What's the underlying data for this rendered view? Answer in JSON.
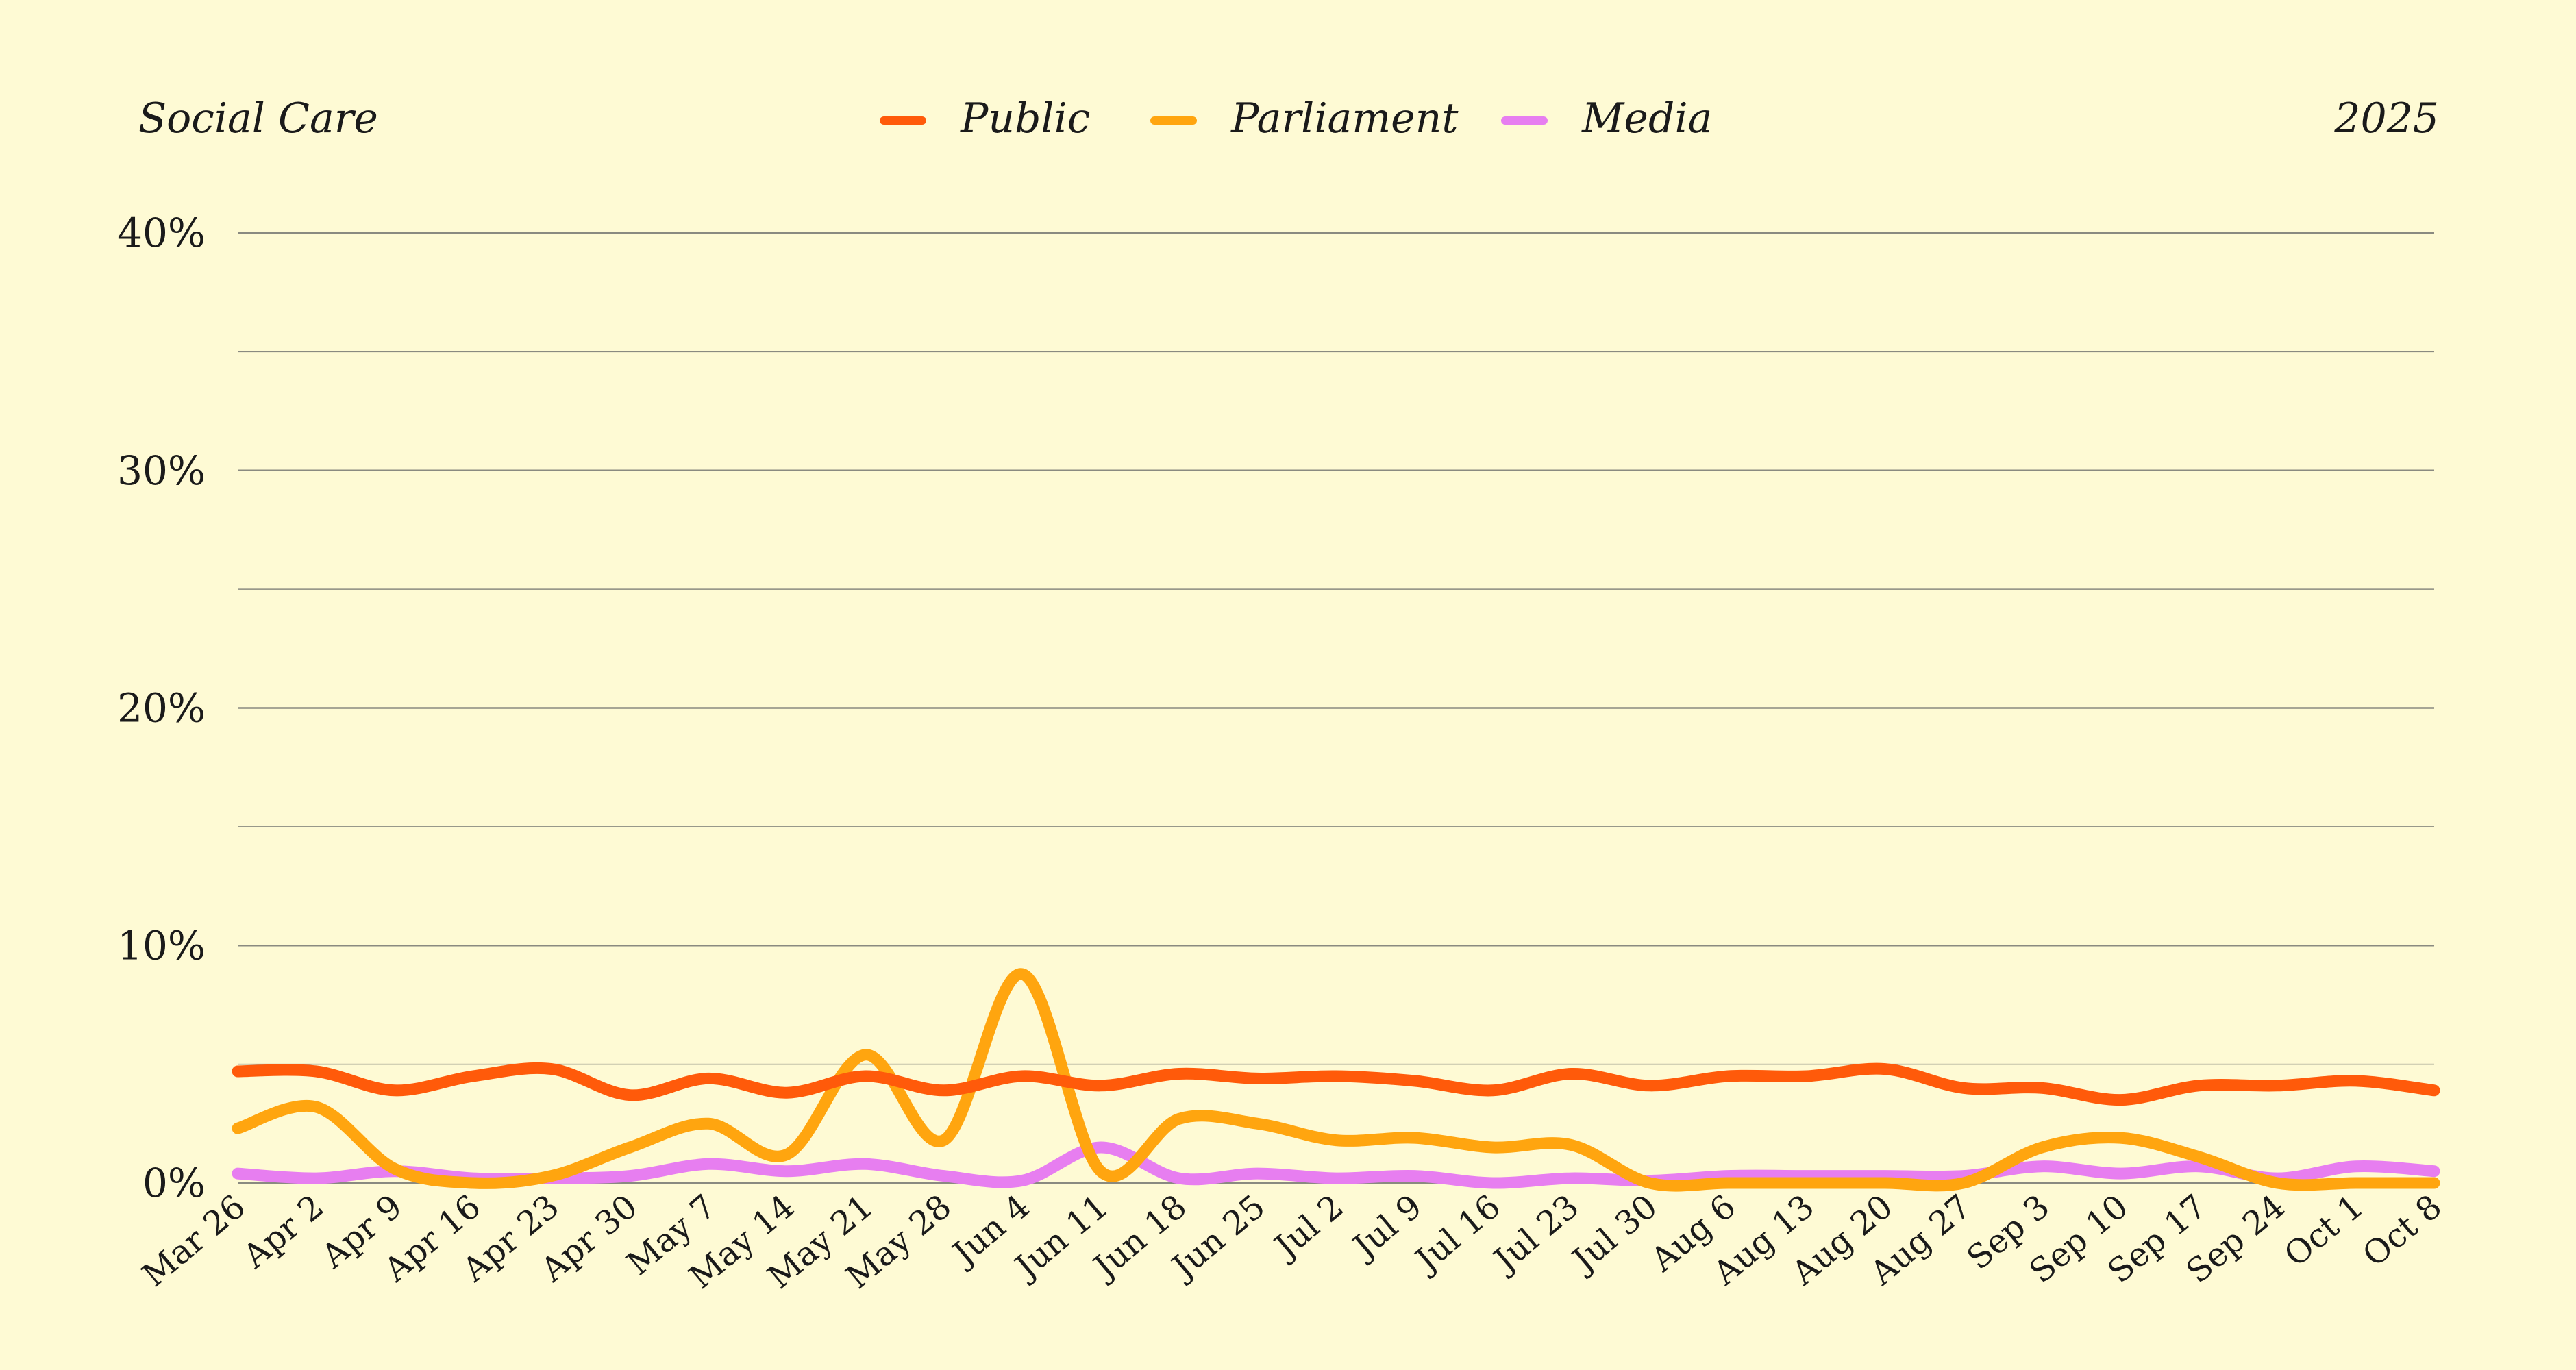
{
  "header": {
    "title": "Social Care",
    "year": "2025"
  },
  "colors": {
    "background": "#fefad4",
    "public": "#ff5a0a",
    "parliament": "#ffa50f",
    "media": "#e77ef0"
  },
  "chart_data": {
    "type": "line",
    "title": "Social Care",
    "subtitle": "2025",
    "xlabel": "",
    "ylabel": "",
    "ylim": [
      0,
      40
    ],
    "yticks": [
      "0%",
      "10%",
      "20%",
      "30%",
      "40%"
    ],
    "grid": true,
    "legend_position": "top-center",
    "categories": [
      "Mar 26",
      "Apr 2",
      "Apr 9",
      "Apr 16",
      "Apr 23",
      "Apr 30",
      "May 7",
      "May 14",
      "May 21",
      "May 28",
      "Jun 4",
      "Jun 11",
      "Jun 18",
      "Jun 25",
      "Jul 2",
      "Jul 9",
      "Jul 16",
      "Jul 23",
      "Jul 30",
      "Aug 6",
      "Aug 13",
      "Aug 20",
      "Aug 27",
      "Sep 3",
      "Sep 10",
      "Sep 17",
      "Sep 24",
      "Oct 1",
      "Oct 8"
    ],
    "series": [
      {
        "name": "Public",
        "color": "#ff5a0a",
        "values": [
          4.7,
          4.7,
          3.9,
          4.5,
          4.8,
          3.7,
          4.4,
          3.8,
          4.5,
          3.9,
          4.5,
          4.1,
          4.6,
          4.4,
          4.5,
          4.3,
          3.9,
          4.6,
          4.1,
          4.5,
          4.5,
          4.8,
          4.0,
          4.0,
          3.5,
          4.1,
          4.1,
          4.3,
          3.9
        ]
      },
      {
        "name": "Parliament",
        "color": "#ffa50f",
        "values": [
          2.3,
          3.2,
          0.6,
          0.0,
          0.3,
          1.5,
          2.5,
          1.2,
          5.4,
          1.8,
          8.8,
          0.5,
          2.7,
          2.5,
          1.8,
          1.9,
          1.5,
          1.6,
          0.0,
          0.0,
          0.0,
          0.0,
          0.0,
          1.5,
          1.9,
          1.1,
          0.0,
          0.0,
          0.0
        ]
      },
      {
        "name": "Media",
        "color": "#e77ef0",
        "values": [
          0.4,
          0.2,
          0.5,
          0.2,
          0.2,
          0.3,
          0.8,
          0.5,
          0.8,
          0.3,
          0.1,
          1.5,
          0.2,
          0.4,
          0.2,
          0.3,
          0.0,
          0.2,
          0.1,
          0.3,
          0.3,
          0.3,
          0.3,
          0.7,
          0.4,
          0.7,
          0.2,
          0.7,
          0.5
        ]
      }
    ]
  }
}
